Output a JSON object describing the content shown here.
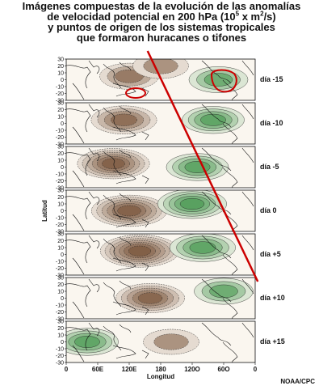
{
  "title": {
    "line1": "Imágenes compuestas de la evolución de las anomalías",
    "line2_pre": "de velocidad potencial en 200 hPa (10",
    "line2_sup1": "5",
    "line2_mid": " x m",
    "line2_sup2": "2",
    "line2_post": "/s)",
    "line3": "y puntos de origen de los sistemas tropicales",
    "line4": "que formaron huracanes o tifones"
  },
  "credit": "NOAA/CPC",
  "chart_data": {
    "type": "heatmap",
    "xlabel": "Longitud",
    "ylabel": "Latitud",
    "x_tick_labels": [
      "0",
      "60E",
      "120E",
      "180",
      "120O",
      "60O",
      "0"
    ],
    "y_tick_labels": [
      "30",
      "20",
      "10",
      "0",
      "-10",
      "-20",
      "-30"
    ],
    "panels": [
      {
        "label": "día -15",
        "centers": [
          {
            "lon": 120,
            "lat": 5,
            "value": -0.4
          },
          {
            "lon": 180,
            "lat": 20,
            "value": -0.3
          },
          {
            "lon": 290,
            "lat": 0,
            "value": 0.4
          }
        ]
      },
      {
        "label": "día -10",
        "centers": [
          {
            "lon": 110,
            "lat": 5,
            "value": -0.6
          },
          {
            "lon": 280,
            "lat": 5,
            "value": 0.5
          }
        ]
      },
      {
        "label": "día -5",
        "centers": [
          {
            "lon": 90,
            "lat": 5,
            "value": -0.8
          },
          {
            "lon": 250,
            "lat": 0,
            "value": 0.5
          }
        ]
      },
      {
        "label": "día 0",
        "centers": [
          {
            "lon": 120,
            "lat": 0,
            "value": -0.9
          },
          {
            "lon": 240,
            "lat": 10,
            "value": 0.7
          }
        ]
      },
      {
        "label": "día +5",
        "centers": [
          {
            "lon": 140,
            "lat": 5,
            "value": -1.0
          },
          {
            "lon": 260,
            "lat": 10,
            "value": 0.6
          }
        ]
      },
      {
        "label": "día +10",
        "centers": [
          {
            "lon": 160,
            "lat": 0,
            "value": -0.7
          },
          {
            "lon": 300,
            "lat": 10,
            "value": 0.4
          }
        ]
      },
      {
        "label": "día +15",
        "centers": [
          {
            "lon": 200,
            "lat": 0,
            "value": -0.3
          },
          {
            "lon": 40,
            "lat": 0,
            "value": 0.5
          }
        ]
      }
    ],
    "trend_line": {
      "lon_start": 155,
      "lon_end": 365,
      "color": "#cc0000"
    },
    "colors": {
      "negative": "#6b4226",
      "positive": "#2e8b3a",
      "highlight": "#cc0000"
    }
  }
}
